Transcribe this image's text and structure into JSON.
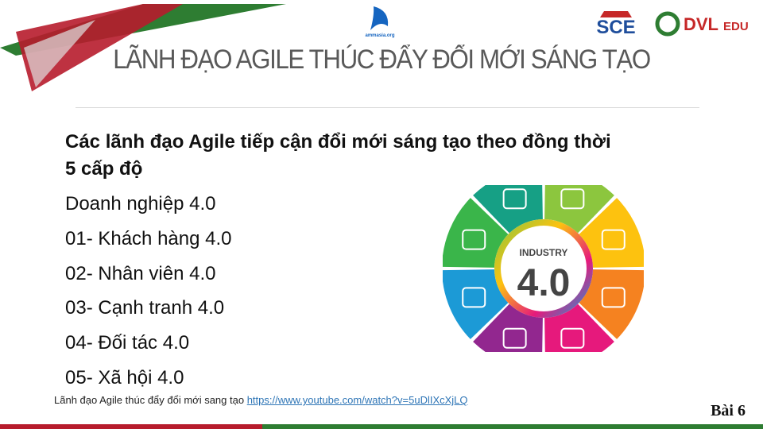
{
  "header": {
    "logos": [
      "ammasia.org",
      "SCE",
      "DVL",
      "EDU"
    ],
    "title": "LÃNH ĐẠO AGILE THÚC ĐẨY ĐỔI MỚI SÁNG TẠO"
  },
  "content": {
    "heading": "Các lãnh đạo Agile tiếp cận đổi mới sáng tạo theo đồng thời 5 cấp độ",
    "items": [
      "Doanh nghiệp 4.0",
      "01- Khách hàng 4.0",
      "02- Nhân viên 4.0",
      "03- Cạnh tranh 4.0",
      "04- Đối tác 4.0",
      "05- Xã hội 4.0"
    ]
  },
  "image": {
    "label": "INDUSTRY",
    "number": "4.0"
  },
  "footer": {
    "caption": "Lãnh đạo Agile thúc đẩy đổi mới sang tạo",
    "link": "https://www.youtube.com/watch?v=5uDlIXcXjLQ",
    "lesson": "Bài 6"
  }
}
